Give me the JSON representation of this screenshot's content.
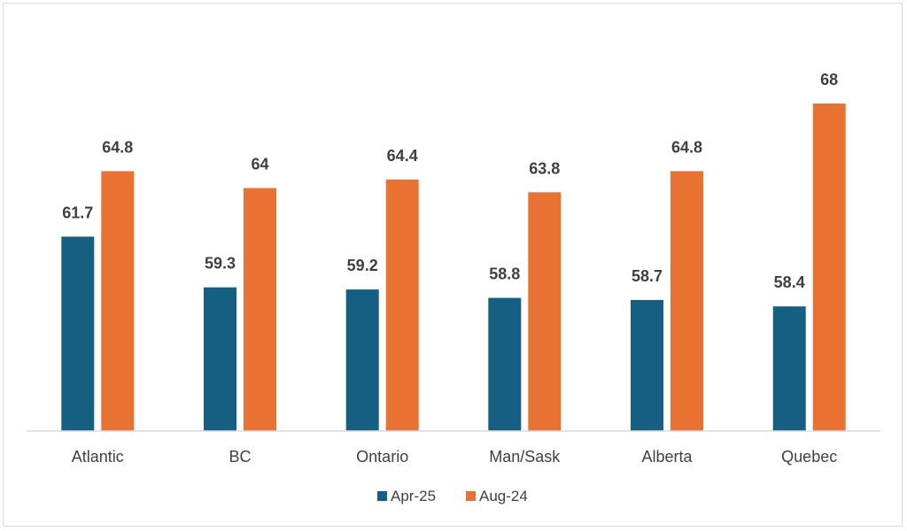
{
  "chart_data": {
    "type": "bar",
    "categories": [
      "Atlantic",
      "BC",
      "Ontario",
      "Man/Sask",
      "Alberta",
      "Quebec"
    ],
    "series": [
      {
        "name": "Apr-25",
        "values": [
          61.7,
          59.3,
          59.2,
          58.8,
          58.7,
          58.4
        ],
        "color": "#156082"
      },
      {
        "name": "Aug-24",
        "values": [
          64.8,
          64,
          64.4,
          63.8,
          64.8,
          68
        ],
        "color": "#E97132"
      }
    ],
    "title": "",
    "xlabel": "",
    "ylabel": "",
    "ylim": [
      52.5,
      70
    ],
    "grid": false,
    "legend": "bottom-center",
    "data_labels": true
  }
}
